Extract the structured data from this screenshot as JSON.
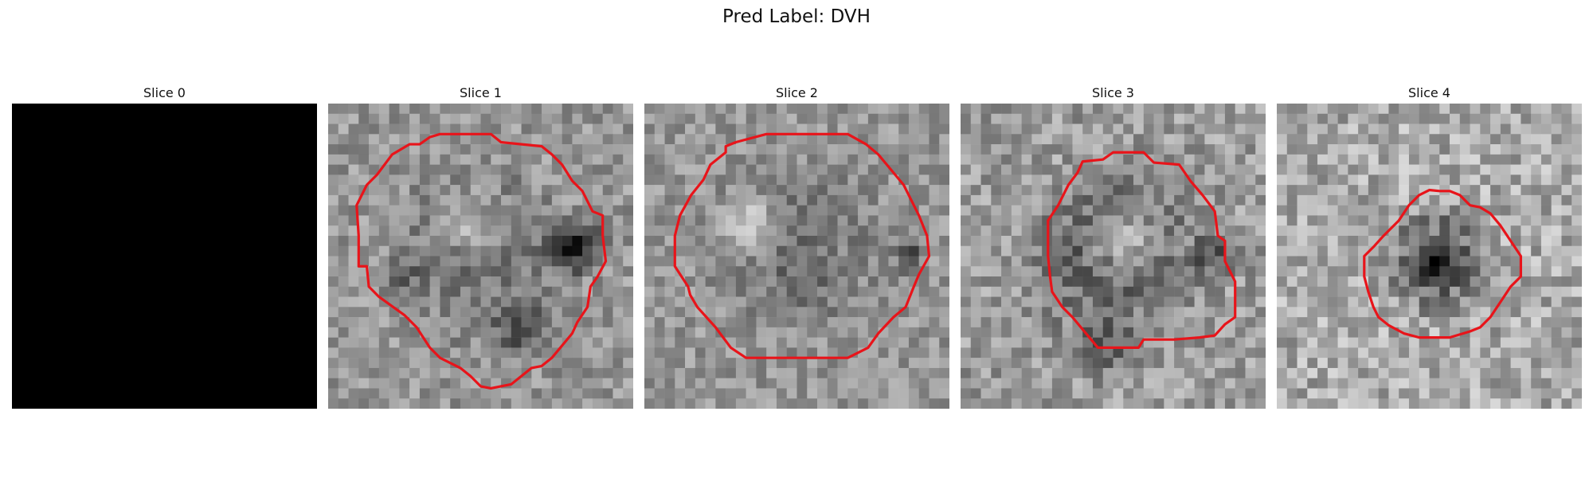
{
  "figure": {
    "title": "Pred Label: DVH"
  },
  "slices": [
    {
      "title": "Slice 0",
      "blank": true
    },
    {
      "title": "Slice 1",
      "blank": false
    },
    {
      "title": "Slice 2",
      "blank": false
    },
    {
      "title": "Slice 3",
      "blank": false
    },
    {
      "title": "Slice 4",
      "blank": false
    }
  ],
  "colors": {
    "contour": "#e8141a",
    "background": "#ffffff"
  }
}
